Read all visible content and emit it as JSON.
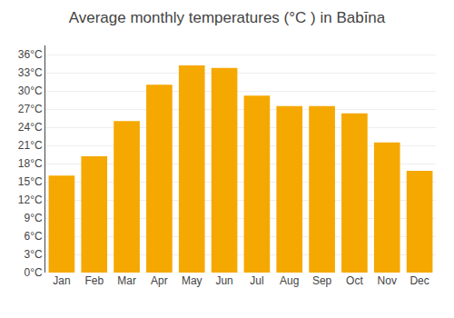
{
  "chart_data": {
    "type": "bar",
    "title": "Average monthly temperatures (°C ) in Babīna",
    "categories": [
      "Jan",
      "Feb",
      "Mar",
      "Apr",
      "May",
      "Jun",
      "Jul",
      "Aug",
      "Sep",
      "Oct",
      "Nov",
      "Dec"
    ],
    "values": [
      16.0,
      19.2,
      25.0,
      31.0,
      34.2,
      33.8,
      29.2,
      27.5,
      27.5,
      26.3,
      21.5,
      16.8
    ],
    "color": "#F5A800",
    "ylim": [
      0,
      37.5
    ],
    "yticks": [
      {
        "value": 0,
        "label": "0°C"
      },
      {
        "value": 3,
        "label": "3°C"
      },
      {
        "value": 6,
        "label": "6°C"
      },
      {
        "value": 9,
        "label": "9°C"
      },
      {
        "value": 12,
        "label": "12°C"
      },
      {
        "value": 15,
        "label": "15°C"
      },
      {
        "value": 18,
        "label": "18°C"
      },
      {
        "value": 21,
        "label": "21°C"
      },
      {
        "value": 24,
        "label": "24°C"
      },
      {
        "value": 27,
        "label": "27°C"
      },
      {
        "value": 30,
        "label": "30°C"
      },
      {
        "value": 33,
        "label": "33°C"
      },
      {
        "value": 36,
        "label": "36°C"
      }
    ],
    "grid": true
  }
}
